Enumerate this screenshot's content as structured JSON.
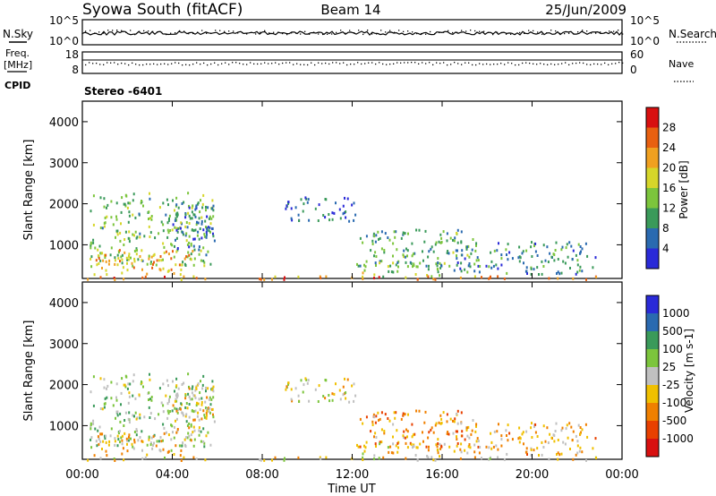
{
  "header": {
    "station": "Syowa South (fitACF)",
    "beam": "Beam 14",
    "date": "25/Jun/2009"
  },
  "strip": {
    "nsky_label": "N.Sky",
    "nsearch_label": "N.Search",
    "nsky_ticks": [
      "10^5",
      "10^0"
    ],
    "nsearch_ticks": [
      "10^5",
      "10^0"
    ],
    "freq_label_top": "Freq.",
    "freq_label_bottom": "[MHz]",
    "freq_ticks": [
      "18",
      "8"
    ],
    "nave_label": "Nave",
    "nave_ticks": [
      "60",
      "0"
    ],
    "cpid_label": "CPID",
    "cpid_value": "Stereo -6401"
  },
  "axes": {
    "x_label": "Time UT",
    "x_ticks": [
      "00:00",
      "04:00",
      "08:00",
      "12:00",
      "16:00",
      "20:00",
      "00:00"
    ],
    "y_label": "Slant Range [km]",
    "y_ticks": [
      "1000",
      "2000",
      "3000",
      "4000"
    ]
  },
  "colorbars": {
    "power": {
      "label": "Power [dB]",
      "ticks": [
        "4",
        "8",
        "12",
        "16",
        "20",
        "24",
        "28"
      ],
      "colors": [
        "#2a2ad8",
        "#2a6ab0",
        "#3a9a5a",
        "#7cc53c",
        "#d6d62a",
        "#f0a020",
        "#e86010",
        "#d81010"
      ]
    },
    "velocity": {
      "label": "Velocity [m s-1]",
      "ticks": [
        "1000",
        "500",
        "100",
        "25",
        "-25",
        "-100",
        "-500",
        "-1000"
      ],
      "colors": [
        "#2a2ad8",
        "#2a6ab0",
        "#3a9a5a",
        "#7cc53c",
        "#c0c0c0",
        "#f0c000",
        "#f08000",
        "#e84000",
        "#d81010"
      ]
    }
  },
  "chart_data": [
    {
      "type": "heatmap",
      "title": "Beam 14",
      "xlabel": "Time UT",
      "ylabel": "Slant Range [km]",
      "xlim": [
        0,
        24
      ],
      "ylim": [
        180,
        4500
      ],
      "colorbar": "Power [dB]",
      "color_range": [
        0,
        30
      ],
      "regions": [
        {
          "t0": 0.3,
          "t1": 5.8,
          "r0": 500,
          "r1": 2300,
          "val": 12
        },
        {
          "t0": 0.5,
          "t1": 5.0,
          "r0": 300,
          "r1": 900,
          "val": 20
        },
        {
          "t0": 4.0,
          "t1": 5.9,
          "r0": 900,
          "r1": 2100,
          "val": 6
        },
        {
          "t0": 9.0,
          "t1": 12.2,
          "r0": 1600,
          "r1": 2200,
          "val": 6
        },
        {
          "t0": 12.3,
          "t1": 17.5,
          "r0": 500,
          "r1": 1400,
          "val": 10
        },
        {
          "t0": 12.0,
          "t1": 16.0,
          "r0": 250,
          "r1": 600,
          "val": 14
        },
        {
          "t0": 16.5,
          "t1": 22.8,
          "r0": 300,
          "r1": 1100,
          "val": 8
        },
        {
          "t0": 0.0,
          "t1": 24.0,
          "r0": 180,
          "r1": 260,
          "val": 22
        }
      ]
    },
    {
      "type": "heatmap",
      "xlabel": "Time UT",
      "ylabel": "Slant Range [km]",
      "xlim": [
        0,
        24
      ],
      "ylim": [
        180,
        4500
      ],
      "colorbar": "Velocity [m s-1]",
      "color_range": [
        -1000,
        1000
      ],
      "regions": [
        {
          "t0": 0.3,
          "t1": 5.8,
          "r0": 500,
          "r1": 2300,
          "val": 150
        },
        {
          "t0": 0.5,
          "t1": 5.0,
          "r0": 300,
          "r1": 900,
          "val": -200
        },
        {
          "t0": 4.0,
          "t1": 5.9,
          "r0": 900,
          "r1": 2100,
          "val": -150
        },
        {
          "t0": 9.0,
          "t1": 12.2,
          "r0": 1600,
          "r1": 2200,
          "val": -50
        },
        {
          "t0": 12.3,
          "t1": 17.5,
          "r0": 500,
          "r1": 1400,
          "val": -400
        },
        {
          "t0": 12.0,
          "t1": 16.0,
          "r0": 250,
          "r1": 600,
          "val": -100
        },
        {
          "t0": 16.5,
          "t1": 22.8,
          "r0": 300,
          "r1": 1100,
          "val": -250
        },
        {
          "t0": 0.0,
          "t1": 24.0,
          "r0": 180,
          "r1": 260,
          "val": -150
        }
      ]
    }
  ]
}
